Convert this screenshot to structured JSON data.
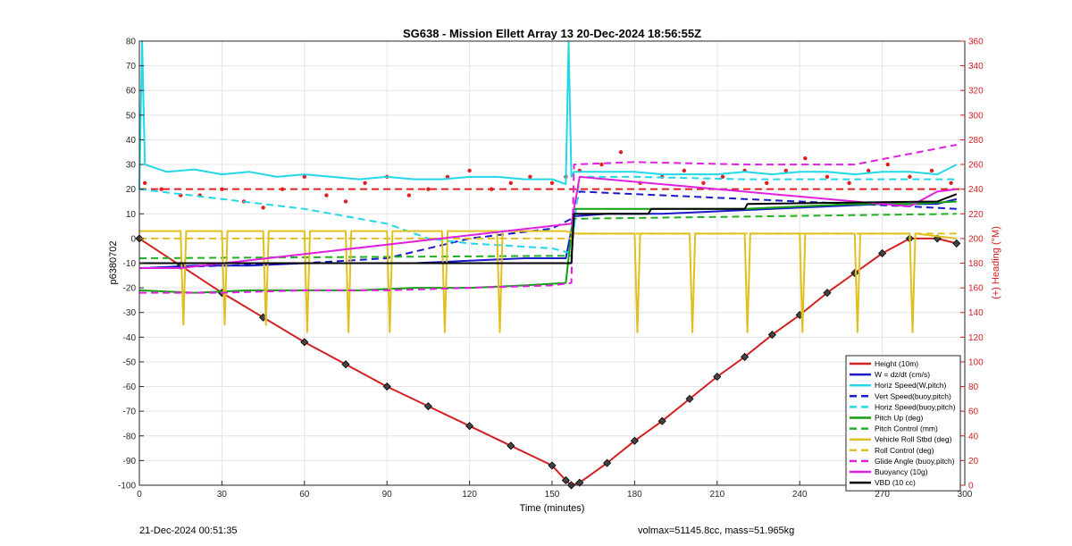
{
  "chart_data": {
    "type": "line",
    "title": "SG638 - Mission Ellett Array 13 20-Dec-2024 18:56:55Z",
    "xlabel": "Time (minutes)",
    "ylabel": "p6380702",
    "ylabel_right": "(+) Heading (°M)",
    "xlim": [
      0,
      300
    ],
    "ylim": [
      -100,
      80
    ],
    "ylim_right": [
      0,
      360
    ],
    "xticks": [
      0,
      30,
      60,
      90,
      120,
      150,
      180,
      210,
      240,
      270,
      300
    ],
    "yticks": [
      80,
      70,
      60,
      50,
      40,
      30,
      20,
      10,
      0,
      -10,
      -20,
      -30,
      -40,
      -50,
      -60,
      -70,
      -80,
      -90,
      -100
    ],
    "yticks_right": [
      360,
      340,
      320,
      300,
      280,
      260,
      240,
      220,
      200,
      180,
      160,
      140,
      120,
      100,
      80,
      60,
      40,
      20,
      0
    ],
    "grid": true,
    "legend_position": "bottom-right",
    "series": [
      {
        "name": "Height (10m)",
        "color": "#d22020",
        "style": "solid",
        "markers": "diamond",
        "x": [
          0,
          15,
          30,
          45,
          60,
          75,
          90,
          105,
          120,
          135,
          150,
          155,
          157,
          160,
          170,
          180,
          190,
          200,
          210,
          220,
          230,
          240,
          250,
          260,
          270,
          280,
          290,
          297
        ],
        "y": [
          0,
          -11,
          -22,
          -32,
          -42,
          -51,
          -60,
          -68,
          -76,
          -84,
          -92,
          -98,
          -100,
          -99,
          -91,
          -82,
          -74,
          -65,
          -56,
          -48,
          -39,
          -31,
          -22,
          -14,
          -6,
          0,
          0,
          -2
        ]
      },
      {
        "name": "W = dz/dt (cm/s)",
        "color": "#1a1acc",
        "style": "solid",
        "x": [
          2,
          20,
          40,
          60,
          80,
          100,
          120,
          140,
          155,
          158,
          170,
          190,
          210,
          230,
          250,
          270,
          290,
          297
        ],
        "y": [
          -12,
          -11,
          -11,
          -10,
          -10,
          -10,
          -9,
          -8,
          -8,
          9,
          10,
          10,
          11,
          12,
          13,
          14,
          14,
          16
        ]
      },
      {
        "name": "Horiz Speed(W,pitch)",
        "color": "#22d8e8",
        "style": "solid",
        "x": [
          0,
          1,
          2,
          10,
          20,
          30,
          40,
          50,
          60,
          70,
          80,
          90,
          100,
          110,
          120,
          130,
          140,
          150,
          155,
          156,
          157,
          158,
          160,
          170,
          180,
          190,
          200,
          210,
          220,
          230,
          240,
          250,
          260,
          270,
          280,
          290,
          297
        ],
        "y": [
          20,
          80,
          30,
          27,
          28,
          26,
          27,
          25,
          26,
          25,
          24,
          25,
          24,
          24,
          25,
          25,
          24,
          24,
          22,
          80,
          25,
          27,
          27,
          27,
          27,
          26,
          26,
          26,
          27,
          26,
          27,
          27,
          26,
          27,
          27,
          26,
          30
        ]
      },
      {
        "name": "Vert Speed(buoy,pitch)",
        "color": "#1a1acc",
        "style": "dashed",
        "x": [
          0,
          30,
          60,
          90,
          120,
          150,
          157,
          160,
          180,
          200,
          220,
          240,
          260,
          280,
          297
        ],
        "y": [
          -12,
          -11,
          -10,
          -8,
          0,
          4,
          8,
          19,
          18,
          17,
          16,
          15,
          14,
          13,
          12
        ]
      },
      {
        "name": "Horiz Speed(buoy,pitch)",
        "color": "#22d8e8",
        "style": "dashed",
        "x": [
          0,
          30,
          60,
          90,
          105,
          120,
          150,
          157,
          160,
          180,
          220,
          260,
          297
        ],
        "y": [
          20,
          16,
          12,
          6,
          0,
          -2,
          -4,
          -6,
          25,
          25,
          24,
          24,
          24
        ]
      },
      {
        "name": "Pitch Up (deg)",
        "color": "#10a010",
        "style": "solid",
        "x": [
          0,
          20,
          40,
          60,
          80,
          100,
          120,
          140,
          155,
          158,
          180,
          200,
          220,
          240,
          260,
          280,
          297
        ],
        "y": [
          -21,
          -22,
          -21,
          -21,
          -21,
          -20,
          -20,
          -19,
          -18,
          12,
          12,
          12,
          12,
          13,
          14,
          14,
          15
        ]
      },
      {
        "name": "Pitch Control (mm)",
        "color": "#20b020",
        "style": "dashed",
        "x": [
          0,
          157,
          158,
          297
        ],
        "y": [
          -8,
          -7,
          8,
          10
        ]
      },
      {
        "name": "Vehicle Roll Stbd (deg)",
        "color": "#e0c020",
        "style": "solid",
        "x": [
          0,
          15,
          16,
          17,
          30,
          31,
          32,
          45,
          46,
          47,
          60,
          61,
          62,
          75,
          76,
          77,
          90,
          91,
          92,
          110,
          111,
          112,
          130,
          131,
          132,
          155,
          158,
          180,
          181,
          182,
          200,
          201,
          202,
          220,
          221,
          222,
          240,
          241,
          242,
          260,
          261,
          262,
          280,
          281,
          282,
          297
        ],
        "y": [
          3,
          3,
          -35,
          3,
          3,
          -35,
          3,
          3,
          -35,
          3,
          3,
          -38,
          3,
          3,
          -38,
          3,
          3,
          -38,
          3,
          3,
          -38,
          3,
          3,
          -38,
          3,
          3,
          2,
          2,
          -38,
          2,
          2,
          -38,
          2,
          2,
          -38,
          2,
          2,
          -38,
          2,
          2,
          -38,
          2,
          2,
          -38,
          2,
          0
        ]
      },
      {
        "name": "Roll Control (deg)",
        "color": "#e0c020",
        "style": "dashed",
        "x": [
          0,
          157,
          158,
          297
        ],
        "y": [
          0,
          0,
          2,
          2
        ]
      },
      {
        "name": "Glide Angle (buoy,pitch)",
        "color": "#e020e0",
        "style": "dashed",
        "x": [
          0,
          30,
          60,
          90,
          120,
          150,
          157,
          158,
          180,
          220,
          260,
          297
        ],
        "y": [
          -22,
          -22,
          -21,
          -21,
          -20,
          -19,
          -18,
          30,
          31,
          30,
          30,
          38
        ]
      },
      {
        "name": "Buoyancy (10g)",
        "color": "#e020e0",
        "style": "solid",
        "x": [
          0,
          15,
          157,
          160,
          280,
          290,
          297
        ],
        "y": [
          -12,
          -12,
          6,
          25,
          13,
          19,
          20
        ]
      },
      {
        "name": "VBD (10 cc)",
        "color": "#000000",
        "style": "solid",
        "x": [
          0,
          20,
          157,
          158,
          185,
          186,
          220,
          221,
          290,
          297
        ],
        "y": [
          -10,
          -10,
          -10,
          10,
          10,
          12,
          12,
          14,
          15,
          18
        ]
      }
    ],
    "heading_series": {
      "color": "#e02020",
      "axis": "right",
      "style": "dots",
      "x": [
        2,
        8,
        15,
        22,
        30,
        38,
        45,
        52,
        60,
        68,
        75,
        82,
        90,
        98,
        105,
        112,
        120,
        128,
        135,
        142,
        150,
        155,
        160,
        168,
        175,
        182,
        190,
        198,
        205,
        212,
        220,
        228,
        235,
        242,
        250,
        258,
        265,
        272,
        280,
        288,
        295
      ],
      "y": [
        245,
        240,
        235,
        235,
        240,
        230,
        225,
        240,
        250,
        235,
        230,
        245,
        250,
        235,
        240,
        250,
        255,
        240,
        245,
        250,
        245,
        250,
        255,
        260,
        270,
        245,
        250,
        255,
        245,
        250,
        255,
        245,
        255,
        265,
        250,
        245,
        255,
        260,
        250,
        255,
        245
      ]
    },
    "heading_reference": {
      "color": "#e02020",
      "style": "dashed",
      "y": 240,
      "axis": "right"
    }
  },
  "footer": {
    "left": "21-Dec-2024 00:51:35",
    "right": "volmax=51145.8cc, mass=51.965kg"
  }
}
